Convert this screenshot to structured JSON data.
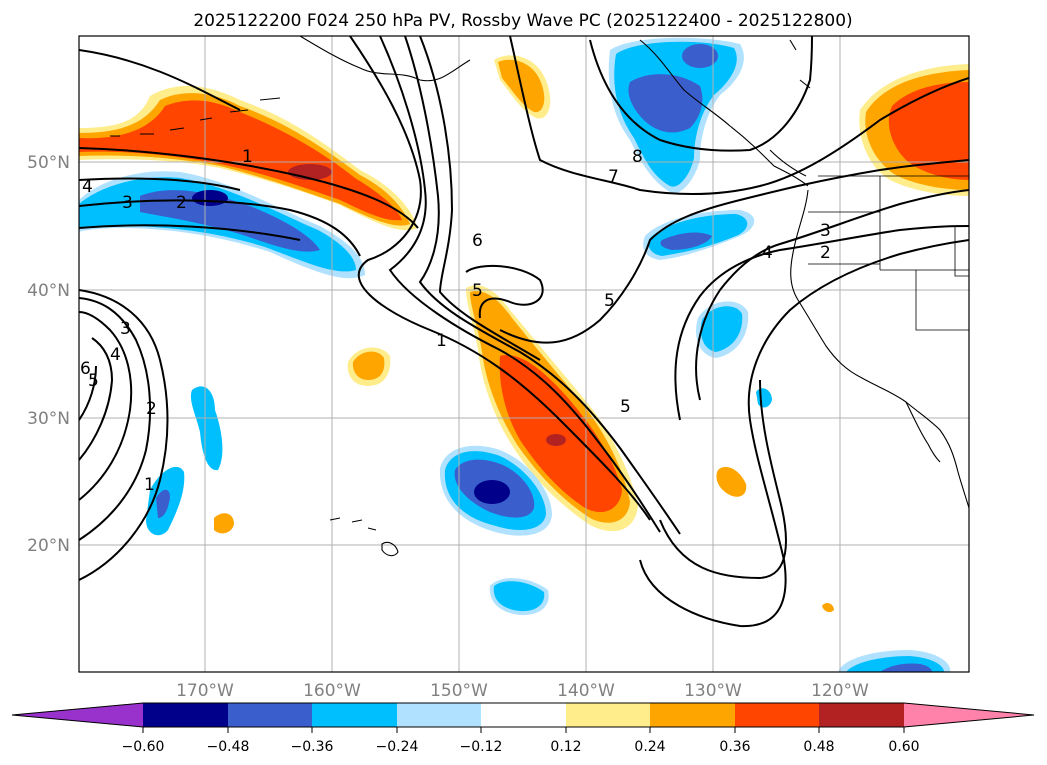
{
  "title": "2025122200 F024 250 hPa PV, Rossby Wave PC (2025122400 - 2025122800)",
  "lat_labels": [
    "50°N",
    "40°N",
    "30°N",
    "20°N"
  ],
  "lon_labels": [
    "170°W",
    "160°W",
    "150°W",
    "140°W",
    "130°W",
    "120°W"
  ],
  "colorbar": {
    "ticks": [
      "−0.60",
      "−0.48",
      "−0.36",
      "−0.24",
      "−0.12",
      "0.12",
      "0.24",
      "0.36",
      "0.48",
      "0.60"
    ],
    "colors": [
      "#9932cc",
      "#00008b",
      "#3a5fcd",
      "#00bfff",
      "#b0e2ff",
      "#ffffff",
      "#ffec8b",
      "#ffa500",
      "#ff4500",
      "#b22222",
      "#ff82ab"
    ]
  },
  "contour_labels": [
    "1",
    "2",
    "3",
    "4",
    "5",
    "6",
    "7",
    "8",
    "5",
    "1",
    "2",
    "3",
    "4",
    "5",
    "6",
    "1",
    "2",
    "3",
    "4",
    "5"
  ]
}
